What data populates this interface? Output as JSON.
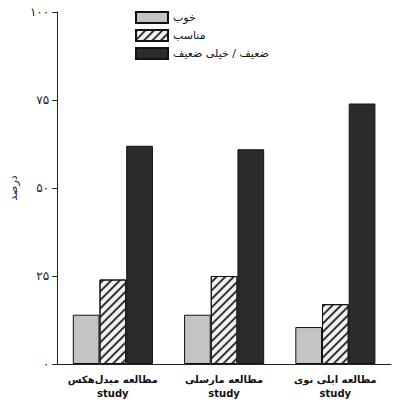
{
  "chart_data": {
    "type": "bar",
    "categories": [
      "مطالعه میدل‌هکس\nstudy",
      "مطالعه مارسلی\nstudy",
      "مطالعه ایلی نوی\nstudy"
    ],
    "series": [
      {
        "name": "خوب",
        "color": "#c4c4c4",
        "values": [
          14,
          14,
          10.5
        ]
      },
      {
        "name": "مناسب",
        "color": "#f2f2f2",
        "marker": "hatch",
        "values": [
          24,
          25,
          17
        ]
      },
      {
        "name": "ضعیف / خیلی ضعیف",
        "color": "#2b2b2b",
        "values": [
          62,
          61,
          74
        ]
      }
    ],
    "ylabel": "درصد",
    "ylim": [
      0,
      100
    ],
    "yticks": [
      {
        "value": 0,
        "label": "۰"
      },
      {
        "value": 25,
        "label": "۲۵"
      },
      {
        "value": 50,
        "label": "۵۰"
      },
      {
        "value": 75,
        "label": "۷۵"
      },
      {
        "value": 100,
        "label": "۱۰۰"
      }
    ],
    "grid": false,
    "legend": "upper left"
  }
}
